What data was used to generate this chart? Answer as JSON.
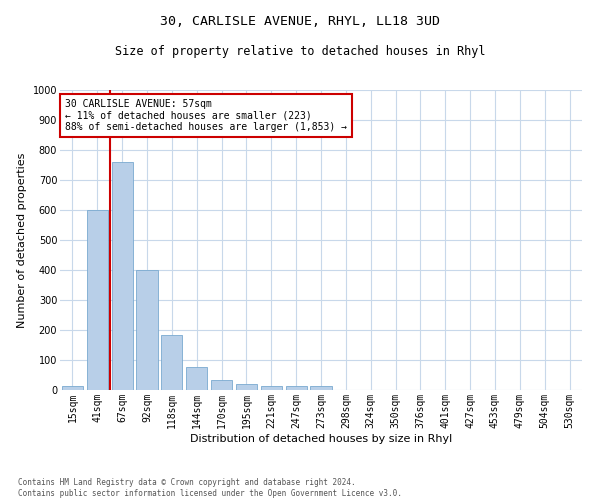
{
  "title1": "30, CARLISLE AVENUE, RHYL, LL18 3UD",
  "title2": "Size of property relative to detached houses in Rhyl",
  "xlabel": "Distribution of detached houses by size in Rhyl",
  "ylabel": "Number of detached properties",
  "categories": [
    "15sqm",
    "41sqm",
    "67sqm",
    "92sqm",
    "118sqm",
    "144sqm",
    "170sqm",
    "195sqm",
    "221sqm",
    "247sqm",
    "273sqm",
    "298sqm",
    "324sqm",
    "350sqm",
    "376sqm",
    "401sqm",
    "427sqm",
    "453sqm",
    "479sqm",
    "504sqm",
    "530sqm"
  ],
  "values": [
    15,
    600,
    760,
    400,
    185,
    77,
    35,
    20,
    14,
    12,
    14,
    0,
    0,
    0,
    0,
    0,
    0,
    0,
    0,
    0,
    0
  ],
  "bar_color": "#b8cfe8",
  "bar_edge_color": "#7aaad0",
  "vline_color": "#cc0000",
  "annotation_text": "30 CARLISLE AVENUE: 57sqm\n← 11% of detached houses are smaller (223)\n88% of semi-detached houses are larger (1,853) →",
  "annotation_box_color": "#ffffff",
  "annotation_box_edge": "#cc0000",
  "ylim": [
    0,
    1000
  ],
  "yticks": [
    0,
    100,
    200,
    300,
    400,
    500,
    600,
    700,
    800,
    900,
    1000
  ],
  "background_color": "#ffffff",
  "grid_color": "#c8d8ea",
  "footnote": "Contains HM Land Registry data © Crown copyright and database right 2024.\nContains public sector information licensed under the Open Government Licence v3.0.",
  "title1_fontsize": 9.5,
  "title2_fontsize": 8.5,
  "axis_label_fontsize": 8,
  "tick_fontsize": 7,
  "annotation_fontsize": 7,
  "footnote_fontsize": 5.5
}
